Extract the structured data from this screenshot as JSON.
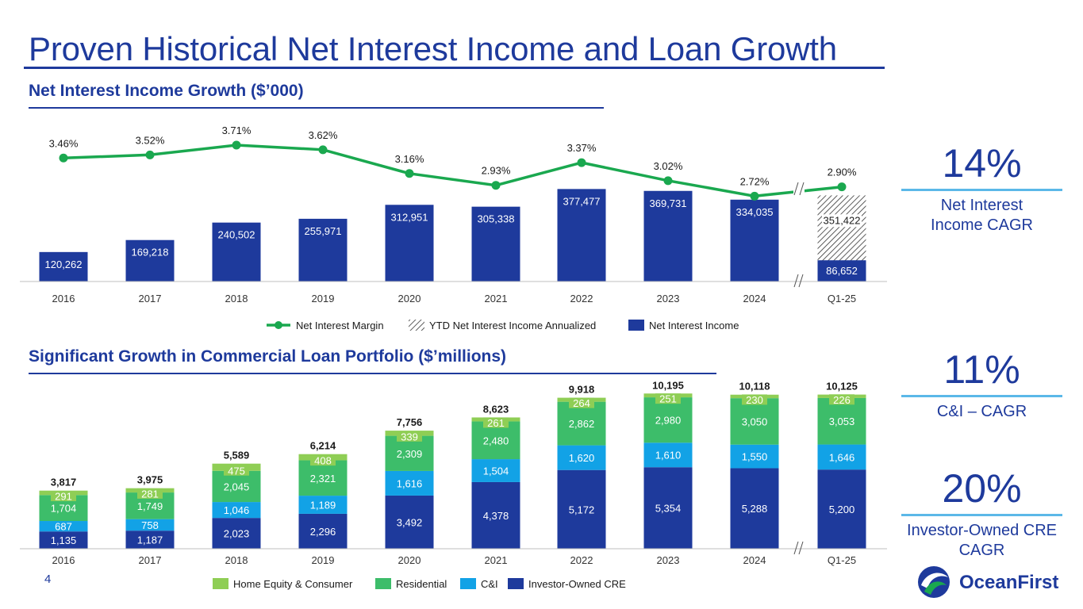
{
  "page": {
    "title": "Proven Historical Net Interest Income and Loan Growth",
    "page_number": "4",
    "logo_text": "OceanFirst"
  },
  "colors": {
    "navy": "#1e3a9c",
    "nim_green": "#1aa84f",
    "ci_blue": "#12a2e6",
    "residential_green": "#3dbd6a",
    "home_equity_green": "#8fce55"
  },
  "kpis": [
    {
      "value": "14%",
      "label": "Net Interest Income CAGR"
    },
    {
      "value": "11%",
      "label": "C&I – CAGR"
    },
    {
      "value": "20%",
      "label": "Investor-Owned CRE CAGR"
    }
  ],
  "chart_data": [
    {
      "type": "bar",
      "title": "Net Interest Income Growth ($’000)",
      "categories": [
        "2016",
        "2017",
        "2018",
        "2019",
        "2020",
        "2021",
        "2022",
        "2023",
        "2024",
        "Q1-25"
      ],
      "series": [
        {
          "name": "Net Interest Income",
          "type": "bar",
          "values": [
            120262,
            169218,
            240502,
            255971,
            312951,
            305338,
            377477,
            369731,
            334035,
            86652
          ]
        },
        {
          "name": "YTD Net Interest Income Annualized",
          "type": "bar",
          "values": [
            null,
            null,
            null,
            null,
            null,
            null,
            null,
            null,
            null,
            351422
          ]
        },
        {
          "name": "Net Interest Margin",
          "type": "line",
          "values": [
            3.46,
            3.52,
            3.71,
            3.62,
            3.16,
            2.93,
            3.37,
            3.02,
            2.72,
            2.9
          ]
        }
      ],
      "bar_labels": [
        "120,262",
        "169,218",
        "240,502",
        "255,971",
        "312,951",
        "305,338",
        "377,477",
        "369,731",
        "334,035",
        "86,652"
      ],
      "annualized_label": "351,422",
      "nim_labels": [
        "3.46%",
        "3.52%",
        "3.71%",
        "3.62%",
        "3.16%",
        "2.93%",
        "3.37%",
        "3.02%",
        "2.72%",
        "2.90%"
      ],
      "legend": [
        "Net Interest Margin",
        "YTD Net Interest Income Annualized",
        "Net Interest Income"
      ],
      "legend_position": "bottom",
      "axis_break": "between 2024 and Q1-25",
      "grid": false
    },
    {
      "type": "bar",
      "stacked": true,
      "title": "Significant Growth in Commercial Loan Portfolio ($’millions)",
      "categories": [
        "2016",
        "2017",
        "2018",
        "2019",
        "2020",
        "2021",
        "2022",
        "2023",
        "2024",
        "Q1-25"
      ],
      "series": [
        {
          "name": "Investor-Owned CRE",
          "values": [
            1135,
            1187,
            2023,
            2296,
            3492,
            4378,
            5172,
            5354,
            5288,
            5200
          ]
        },
        {
          "name": "C&I",
          "values": [
            687,
            758,
            1046,
            1189,
            1616,
            1504,
            1620,
            1610,
            1550,
            1646
          ]
        },
        {
          "name": "Residential",
          "values": [
            1704,
            1749,
            2045,
            2321,
            2309,
            2480,
            2862,
            2980,
            3050,
            3053
          ]
        },
        {
          "name": "Home Equity & Consumer",
          "values": [
            291,
            281,
            475,
            408,
            339,
            261,
            264,
            251,
            230,
            226
          ]
        }
      ],
      "labels": {
        "Investor-Owned CRE": [
          "1,135",
          "1,187",
          "2,023",
          "2,296",
          "3,492",
          "4,378",
          "5,172",
          "5,354",
          "5,288",
          "5,200"
        ],
        "C&I": [
          "687",
          "758",
          "1,046",
          "1,189",
          "1,616",
          "1,504",
          "1,620",
          "1,610",
          "1,550",
          "1,646"
        ],
        "Residential": [
          "1,704",
          "1,749",
          "2,045",
          "2,321",
          "2,309",
          "2,480",
          "2,862",
          "2,980",
          "3,050",
          "3,053"
        ],
        "Home Equity & Consumer": [
          "291",
          "281",
          "475",
          "408",
          "339",
          "261",
          "264",
          "251",
          "230",
          "226"
        ]
      },
      "totals": [
        "3,817",
        "3,975",
        "5,589",
        "6,214",
        "7,756",
        "8,623",
        "9,918",
        "10,195",
        "10,118",
        "10,125"
      ],
      "legend": [
        "Home Equity & Consumer",
        "Residential",
        "C&I",
        "Investor-Owned CRE"
      ],
      "legend_position": "bottom",
      "axis_break": "between 2024 and Q1-25",
      "grid": false
    }
  ]
}
